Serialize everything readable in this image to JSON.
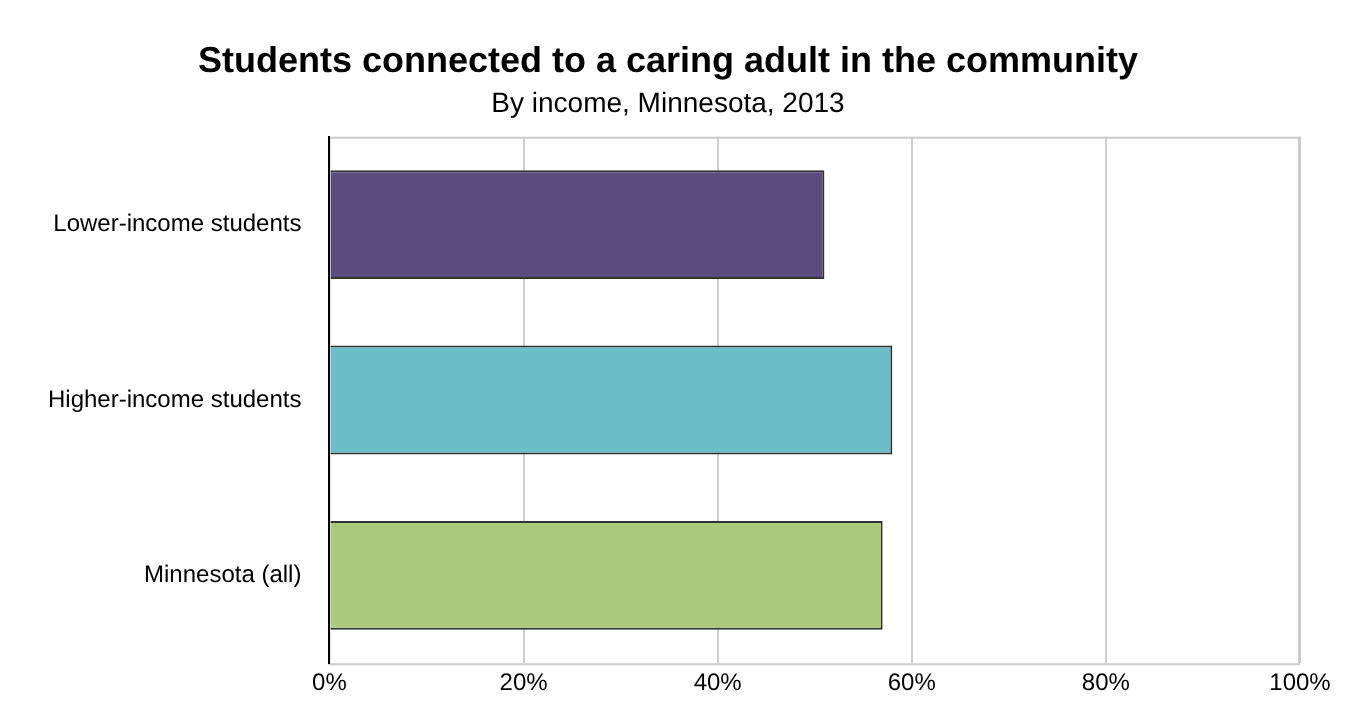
{
  "chart_data": {
    "type": "bar",
    "orientation": "horizontal",
    "title": "Students connected to a caring adult in the community",
    "subtitle": "By income, Minnesota, 2013",
    "categories": [
      "Lower-income students",
      "Higher-income students",
      "Minnesota (all)"
    ],
    "values": [
      51,
      58,
      57
    ],
    "colors": [
      "#5b4c80",
      "#6bbec9",
      "#acca7c"
    ],
    "xlim": [
      0,
      100
    ],
    "xticks": [
      {
        "value": 0,
        "label": "0%"
      },
      {
        "value": 20,
        "label": "20%"
      },
      {
        "value": 40,
        "label": "40%"
      },
      {
        "value": 60,
        "label": "60%"
      },
      {
        "value": 80,
        "label": "80%"
      },
      {
        "value": 100,
        "label": "100%"
      }
    ],
    "grid": "x",
    "legend": false
  }
}
